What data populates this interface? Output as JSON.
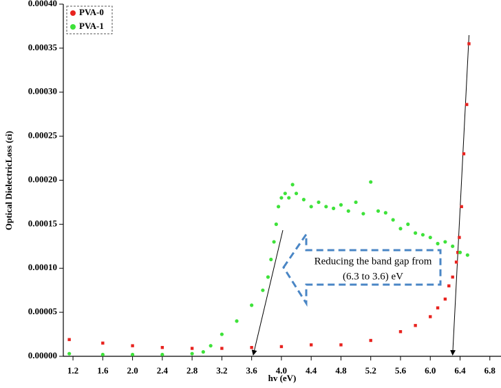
{
  "chart_data": {
    "type": "scatter",
    "x_label": "hv (eV)",
    "y_label": "Optical DielectricLoss (εi)",
    "annotation": [
      "Reducing the band gap from",
      "(6.3 to 3.6) eV"
    ],
    "xlim": [
      1.07,
      6.95
    ],
    "ylim": [
      0,
      0.0004
    ],
    "xticks": [
      1.2,
      1.6,
      {
        "value": 2,
        "label": "2.0"
      },
      2.4,
      2.8,
      3.2,
      3.6,
      {
        "value": 4,
        "label": "4.0"
      },
      4.4,
      4.8,
      5.2,
      5.6,
      {
        "value": 6,
        "label": "6.0"
      },
      6.4,
      6.8
    ],
    "yticks": [
      {
        "value": 0,
        "label": "0.00000"
      },
      {
        "value": 5e-05,
        "label": "0.00005"
      },
      {
        "value": 0.0001,
        "label": "0.00010"
      },
      {
        "value": 0.00015,
        "label": "0.00015"
      },
      {
        "value": 0.0002,
        "label": "0.00020"
      },
      {
        "value": 0.00025,
        "label": "0.00025"
      },
      {
        "value": 0.0003,
        "label": "0.00030"
      },
      {
        "value": 0.00035,
        "label": "0.00035"
      },
      {
        "value": 0.0004,
        "label": "0.00040"
      }
    ],
    "legend": "top-left",
    "series": [
      {
        "name": "PVA-0",
        "color": "#e8231f",
        "marker": "square",
        "x": [
          1.15,
          1.6,
          2.0,
          2.4,
          2.8,
          3.2,
          3.6,
          4.0,
          4.4,
          4.8,
          5.2,
          5.6,
          5.8,
          6.0,
          6.1,
          6.2,
          6.25,
          6.3,
          6.35,
          6.37,
          6.39,
          6.42,
          6.45,
          6.49,
          6.52
        ],
        "values": [
          1.9e-05,
          1.5e-05,
          1.2e-05,
          1e-05,
          9e-06,
          9e-06,
          1e-05,
          1.1e-05,
          1.3e-05,
          1.3e-05,
          1.8e-05,
          2.8e-05,
          3.5e-05,
          4.5e-05,
          5.5e-05,
          6.5e-05,
          8e-05,
          9e-05,
          0.000107,
          0.000118,
          0.000135,
          0.00017,
          0.00023,
          0.000286,
          0.000355
        ]
      },
      {
        "name": "PVA-1",
        "color": "#3ee23a",
        "marker": "circle",
        "x": [
          1.15,
          1.6,
          2.0,
          2.4,
          2.8,
          2.95,
          3.05,
          3.2,
          3.4,
          3.6,
          3.75,
          3.82,
          3.86,
          3.9,
          3.93,
          3.96,
          4.0,
          4.05,
          4.1,
          4.15,
          4.2,
          4.3,
          4.4,
          4.5,
          4.6,
          4.7,
          4.8,
          4.9,
          5.0,
          5.1,
          5.2,
          5.3,
          5.4,
          5.5,
          5.6,
          5.7,
          5.8,
          5.9,
          6.0,
          6.1,
          6.2,
          6.3,
          6.4,
          6.5
        ],
        "values": [
          3e-06,
          2e-06,
          2e-06,
          2e-06,
          3e-06,
          5e-06,
          1.2e-05,
          2.5e-05,
          4e-05,
          5.8e-05,
          7.5e-05,
          9e-05,
          0.00011,
          0.00013,
          0.00015,
          0.00017,
          0.00018,
          0.000185,
          0.00018,
          0.000195,
          0.000185,
          0.000178,
          0.00017,
          0.000175,
          0.00017,
          0.000168,
          0.000172,
          0.000165,
          0.000175,
          0.000162,
          0.000198,
          0.000165,
          0.000163,
          0.000155,
          0.000145,
          0.00015,
          0.00014,
          0.000138,
          0.000135,
          0.000128,
          0.00013,
          0.000125,
          0.000118,
          0.000115
        ]
      }
    ]
  }
}
